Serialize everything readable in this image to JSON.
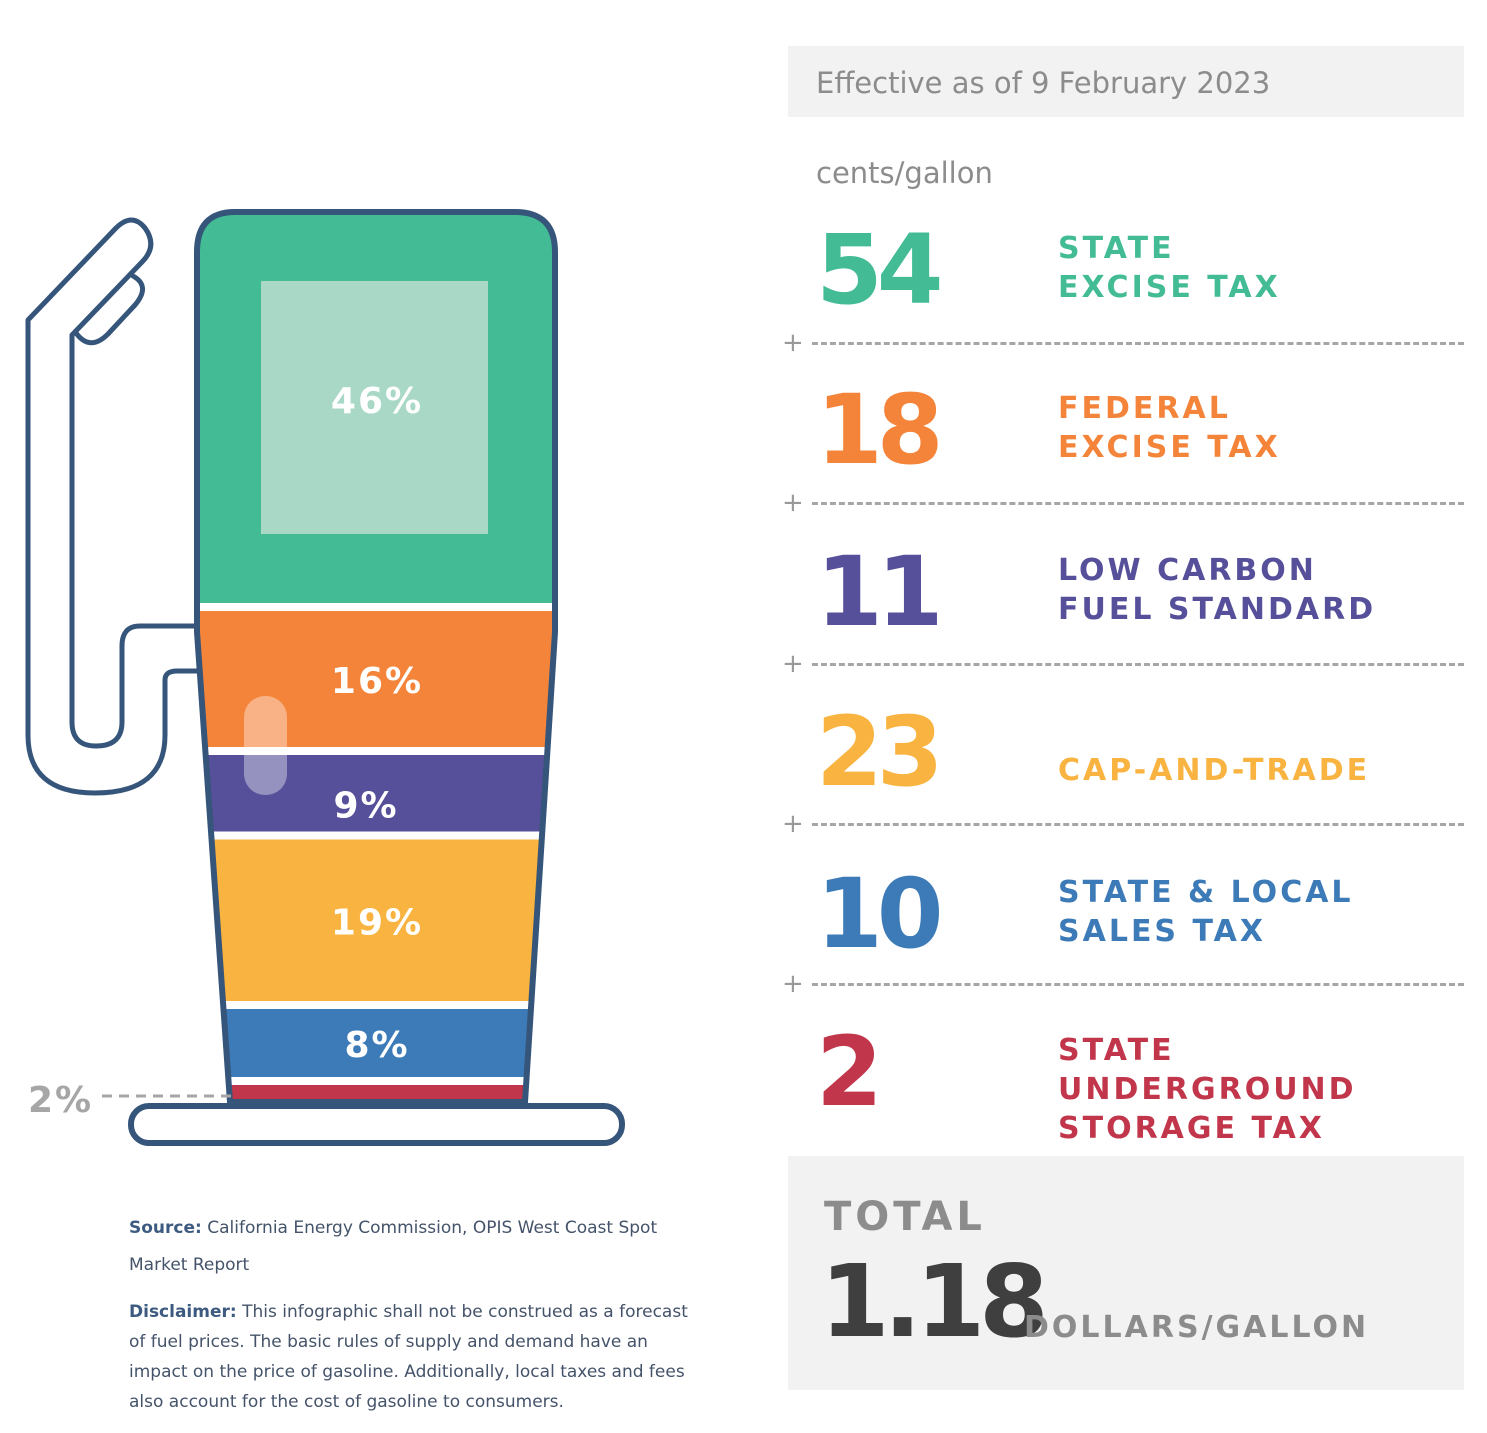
{
  "header": {
    "effective_date": "Effective as of 9 February 2023",
    "unit": "cents/gallon"
  },
  "colors": {
    "pump_outline": "#35557a",
    "state_excise": "#43bc95",
    "federal_excise": "#f4843a",
    "lcfs": "#56509a",
    "cap_and_trade": "#f9b340",
    "sales_tax": "#3c7bb8",
    "underground": "#c1364a"
  },
  "chart_data": {
    "type": "bar",
    "style": "stacked",
    "unit": "cents/gallon",
    "categories": [
      "STATE EXCISE TAX",
      "FEDERAL EXCISE TAX",
      "LOW CARBON FUEL STANDARD",
      "CAP-AND-TRADE",
      "STATE & LOCAL SALES TAX",
      "STATE UNDERGROUND STORAGE TAX"
    ],
    "values": [
      54,
      18,
      11,
      23,
      10,
      2
    ],
    "percentages": [
      46,
      16,
      9,
      19,
      8,
      2
    ],
    "percent_labels": [
      "46%",
      "16%",
      "9%",
      "19%",
      "8%",
      "2%"
    ],
    "total": "1.18",
    "total_unit": "DOLLARS/GALLON"
  },
  "components": [
    {
      "value": "54",
      "name": "STATE\nEXCISE TAX",
      "color": "#43bc95"
    },
    {
      "value": "18",
      "name": "FEDERAL\nEXCISE TAX",
      "color": "#f4843a"
    },
    {
      "value": "11",
      "name": "LOW CARBON\nFUEL STANDARD",
      "color": "#56509a"
    },
    {
      "value": "23",
      "name": "CAP-AND-TRADE",
      "color": "#f9b340"
    },
    {
      "value": "10",
      "name": "STATE & LOCAL\nSALES TAX",
      "color": "#3c7bb8"
    },
    {
      "value": "2",
      "name": "STATE UNDERGROUND\nSTORAGE TAX",
      "color": "#c1364a"
    }
  ],
  "separator_symbol": "+",
  "total": {
    "label": "TOTAL",
    "value": "1.18",
    "unit": "DOLLARS/GALLON"
  },
  "notes": {
    "source_label": "Source:",
    "source_text": "California Energy Commission, OPIS West Coast Spot Market Report",
    "disclaimer_label": "Disclaimer:",
    "disclaimer_text": "This infographic shall not be construed as a forecast of fuel prices. The basic rules of supply and demand have an impact on the price of gasoline. Additionally, local taxes and fees also account for the cost of gasoline to consumers."
  }
}
